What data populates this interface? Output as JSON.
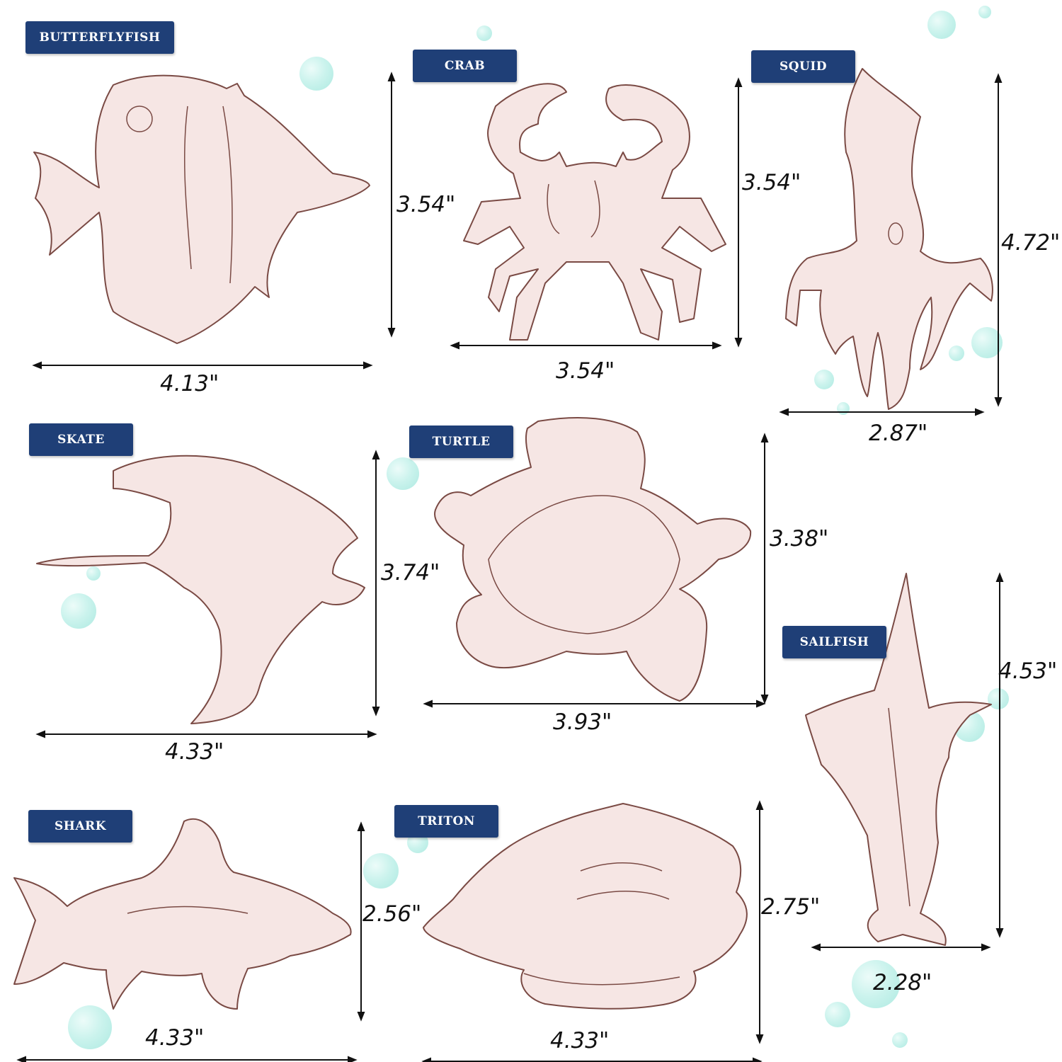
{
  "colors": {
    "label_bg": "#1f3f77",
    "wood": "#f6e6e4",
    "outline": "#7a4a44",
    "bubble": "#a8e9df"
  },
  "pieces": [
    {
      "id": "butterflyfish",
      "label": "BUTTERFLYFISH",
      "width": "4.13\"",
      "height": "3.54\""
    },
    {
      "id": "crab",
      "label": "CRAB",
      "width": "3.54\"",
      "height": "3.54\""
    },
    {
      "id": "squid",
      "label": "SQUID",
      "width": "2.87\"",
      "height": "4.72\""
    },
    {
      "id": "skate",
      "label": "SKATE",
      "width": "4.33\"",
      "height": "3.74\""
    },
    {
      "id": "turtle",
      "label": "TURTLE",
      "width": "3.93\"",
      "height": "3.38\""
    },
    {
      "id": "sailfish",
      "label": "SAILFISH",
      "width": "2.28\"",
      "height": "4.53\""
    },
    {
      "id": "shark",
      "label": "SHARK",
      "width": "4.33\"",
      "height": "2.56\""
    },
    {
      "id": "triton",
      "label": "TRITON",
      "width": "4.33\"",
      "height": "2.75\""
    }
  ]
}
